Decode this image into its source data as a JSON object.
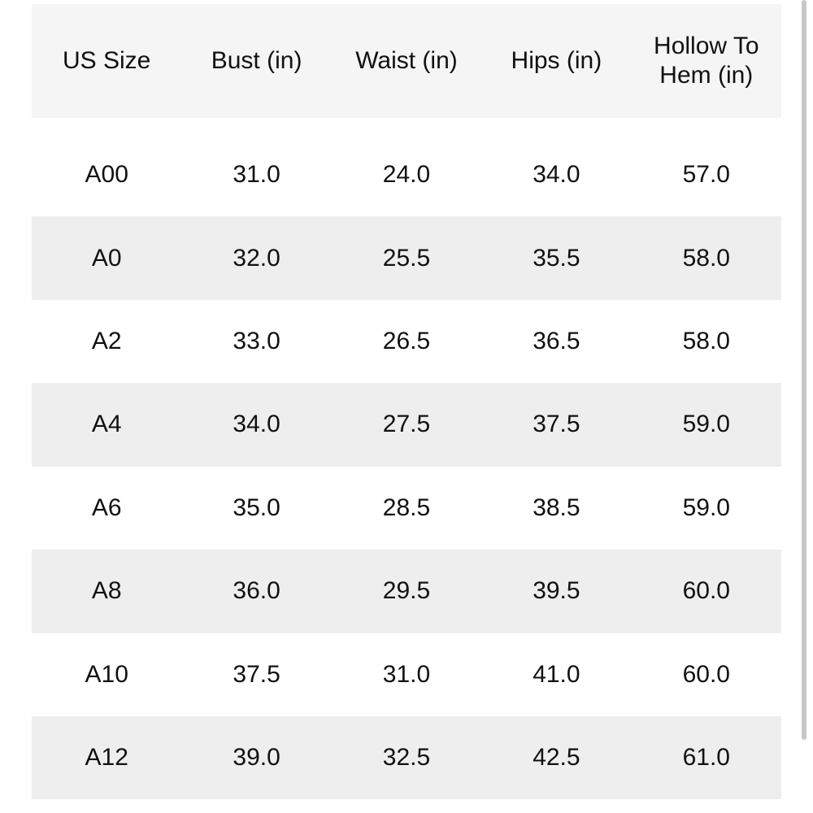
{
  "table": {
    "columns": [
      "US Size",
      "Bust (in)",
      "Waist (in)",
      "Hips (in)",
      "Hollow To Hem (in)"
    ],
    "rows": [
      [
        "A00",
        "31.0",
        "24.0",
        "34.0",
        "57.0"
      ],
      [
        "A0",
        "32.0",
        "25.5",
        "35.5",
        "58.0"
      ],
      [
        "A2",
        "33.0",
        "26.5",
        "36.5",
        "58.0"
      ],
      [
        "A4",
        "34.0",
        "27.5",
        "37.5",
        "59.0"
      ],
      [
        "A6",
        "35.0",
        "28.5",
        "38.5",
        "59.0"
      ],
      [
        "A8",
        "36.0",
        "29.5",
        "39.5",
        "60.0"
      ],
      [
        "A10",
        "37.5",
        "31.0",
        "41.0",
        "60.0"
      ],
      [
        "A12",
        "39.0",
        "32.5",
        "42.5",
        "61.0"
      ]
    ]
  }
}
